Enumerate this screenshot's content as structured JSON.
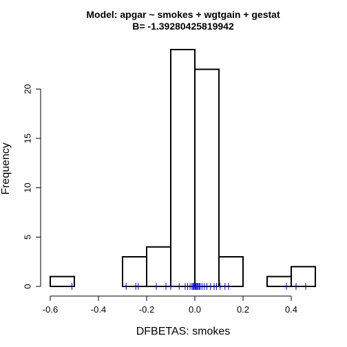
{
  "chart_data": {
    "type": "histogram",
    "title": "Model: apgar ~ smokes + wgtgain + gestat",
    "subtitle": "B= -1.39280425819942",
    "xlabel": "DFBETAS: smokes",
    "ylabel": "Frequency",
    "xlim": [
      -0.6,
      0.5
    ],
    "ylim": [
      0,
      24
    ],
    "x_ticks": [
      -0.6,
      -0.4,
      -0.2,
      0.0,
      0.2,
      0.4
    ],
    "x_tick_labels": [
      "-0.6",
      "-0.4",
      "-0.2",
      "0.0",
      "0.2",
      "0.4"
    ],
    "y_ticks": [
      0,
      5,
      10,
      15,
      20
    ],
    "y_tick_labels": [
      "0",
      "5",
      "10",
      "15",
      "20"
    ],
    "bins": [
      {
        "from": -0.6,
        "to": -0.5,
        "count": 1
      },
      {
        "from": -0.5,
        "to": -0.4,
        "count": 0
      },
      {
        "from": -0.4,
        "to": -0.3,
        "count": 0
      },
      {
        "from": -0.3,
        "to": -0.2,
        "count": 3
      },
      {
        "from": -0.2,
        "to": -0.1,
        "count": 4
      },
      {
        "from": -0.1,
        "to": 0.0,
        "count": 24
      },
      {
        "from": 0.0,
        "to": 0.1,
        "count": 22
      },
      {
        "from": 0.1,
        "to": 0.2,
        "count": 3
      },
      {
        "from": 0.2,
        "to": 0.3,
        "count": 0
      },
      {
        "from": 0.3,
        "to": 0.4,
        "count": 1
      },
      {
        "from": 0.4,
        "to": 0.5,
        "count": 2
      }
    ],
    "rug_values": [
      -0.51,
      -0.285,
      -0.245,
      -0.235,
      -0.16,
      -0.12,
      -0.1,
      -0.065,
      -0.04,
      -0.03,
      -0.02,
      -0.012,
      -0.008,
      -0.004,
      0.0,
      0.003,
      0.006,
      0.01,
      0.014,
      0.018,
      0.022,
      0.03,
      0.04,
      0.05,
      0.065,
      0.08,
      0.09,
      0.105,
      0.125,
      0.14,
      0.38,
      0.42,
      0.46
    ],
    "rug_color": "#0000ff",
    "bar_fill": "#ffffff",
    "bar_stroke": "#000000",
    "grid": false
  }
}
